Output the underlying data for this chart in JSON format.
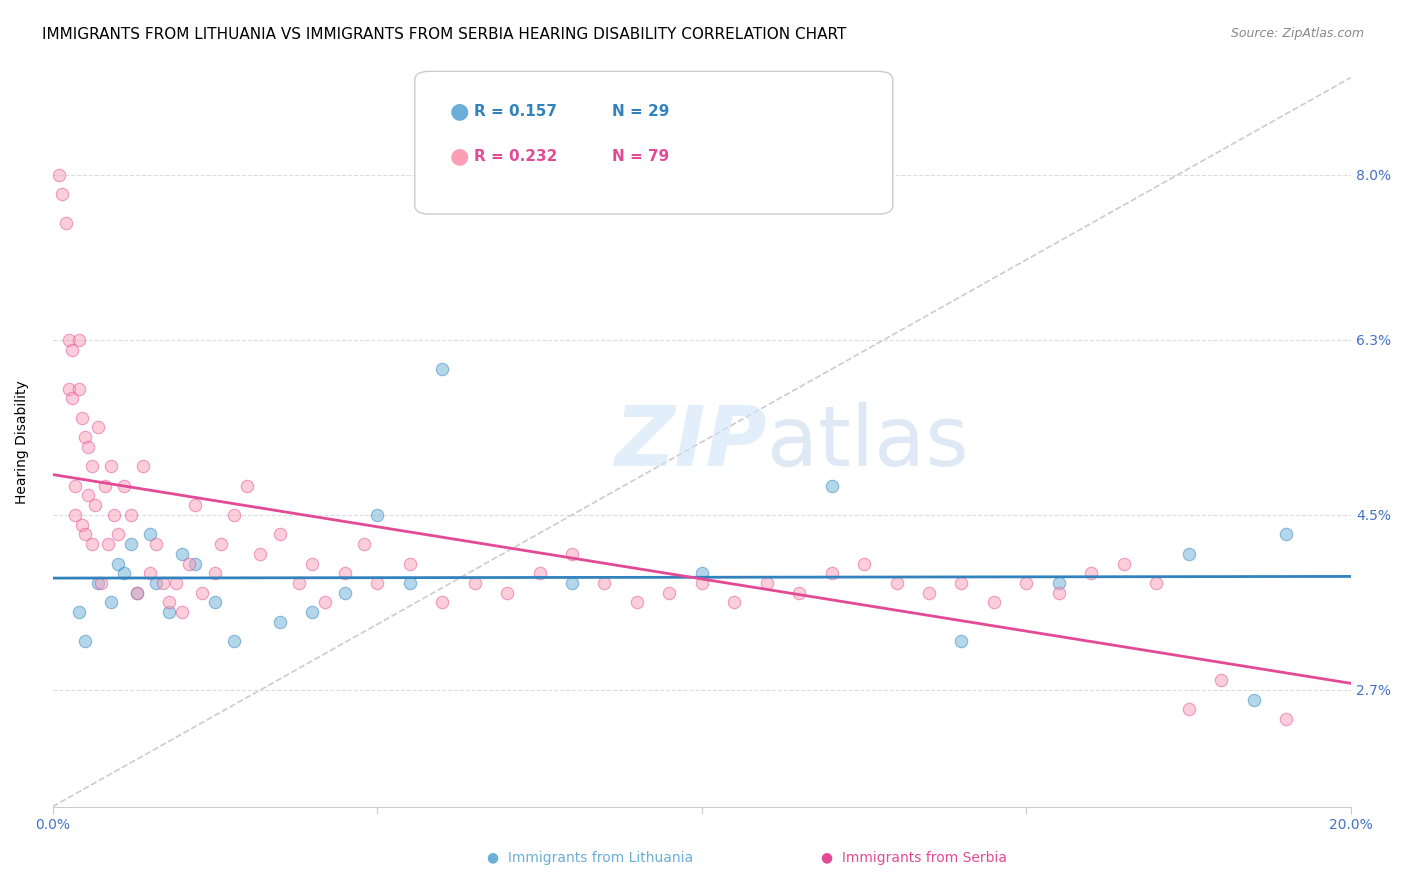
{
  "title": "IMMIGRANTS FROM LITHUANIA VS IMMIGRANTS FROM SERBIA HEARING DISABILITY CORRELATION CHART",
  "source": "Source: ZipAtlas.com",
  "xlabel": "",
  "ylabel": "Hearing Disability",
  "xlim": [
    0.0,
    20.0
  ],
  "ylim": [
    1.5,
    9.0
  ],
  "yticks": [
    2.7,
    4.5,
    6.3,
    8.0
  ],
  "ytick_labels": [
    "2.7%",
    "4.5%",
    "6.3%",
    "8.0%"
  ],
  "xticks": [
    0.0,
    5.0,
    10.0,
    15.0,
    20.0
  ],
  "xtick_labels": [
    "0.0%",
    "",
    "",
    "",
    "20.0%"
  ],
  "legend_blue_r": "R = 0.157",
  "legend_blue_n": "N = 29",
  "legend_pink_r": "R = 0.232",
  "legend_pink_n": "N = 79",
  "legend_label_blue": "Immigrants from Lithuania",
  "legend_label_pink": "Immigrants from Serbia",
  "color_blue": "#6baed6",
  "color_pink": "#fa9fb5",
  "color_blue_line": "#3182bd",
  "color_pink_line": "#e34a96",
  "color_diag_line": "#cccccc",
  "background_color": "#ffffff",
  "grid_color": "#dddddd",
  "axis_color": "#4472c4",
  "title_fontsize": 11,
  "label_fontsize": 10,
  "tick_fontsize": 10,
  "scatter_size": 80,
  "scatter_alpha": 0.5,
  "lithuania_x": [
    0.4,
    0.5,
    0.7,
    0.9,
    1.0,
    1.1,
    1.2,
    1.3,
    1.5,
    1.6,
    1.8,
    2.0,
    2.2,
    2.5,
    2.8,
    3.5,
    4.0,
    4.5,
    5.0,
    5.5,
    6.0,
    8.0,
    10.0,
    12.0,
    14.0,
    15.5,
    17.5,
    18.5,
    19.0
  ],
  "lithuania_y": [
    3.5,
    3.2,
    3.8,
    3.6,
    4.0,
    3.9,
    4.2,
    3.7,
    4.3,
    3.8,
    3.5,
    4.1,
    4.0,
    3.6,
    3.2,
    3.4,
    3.5,
    3.7,
    4.5,
    3.8,
    6.0,
    3.8,
    3.9,
    4.8,
    3.2,
    3.8,
    4.1,
    2.6,
    4.3
  ],
  "serbia_x": [
    0.1,
    0.15,
    0.2,
    0.25,
    0.25,
    0.3,
    0.3,
    0.35,
    0.35,
    0.4,
    0.4,
    0.45,
    0.45,
    0.5,
    0.5,
    0.55,
    0.55,
    0.6,
    0.6,
    0.65,
    0.7,
    0.75,
    0.8,
    0.85,
    0.9,
    0.95,
    1.0,
    1.1,
    1.2,
    1.3,
    1.4,
    1.5,
    1.6,
    1.7,
    1.8,
    1.9,
    2.0,
    2.1,
    2.2,
    2.3,
    2.5,
    2.6,
    2.8,
    3.0,
    3.2,
    3.5,
    3.8,
    4.0,
    4.2,
    4.5,
    4.8,
    5.0,
    5.5,
    6.0,
    6.5,
    7.0,
    7.5,
    8.0,
    8.5,
    9.0,
    9.5,
    10.0,
    10.5,
    11.0,
    11.5,
    12.0,
    12.5,
    13.0,
    13.5,
    14.0,
    14.5,
    15.0,
    15.5,
    16.0,
    16.5,
    17.0,
    17.5,
    18.0,
    19.0
  ],
  "serbia_y": [
    8.0,
    7.8,
    7.5,
    5.8,
    6.3,
    6.2,
    5.7,
    4.5,
    4.8,
    6.3,
    5.8,
    4.4,
    5.5,
    4.3,
    5.3,
    4.7,
    5.2,
    4.2,
    5.0,
    4.6,
    5.4,
    3.8,
    4.8,
    4.2,
    5.0,
    4.5,
    4.3,
    4.8,
    4.5,
    3.7,
    5.0,
    3.9,
    4.2,
    3.8,
    3.6,
    3.8,
    3.5,
    4.0,
    4.6,
    3.7,
    3.9,
    4.2,
    4.5,
    4.8,
    4.1,
    4.3,
    3.8,
    4.0,
    3.6,
    3.9,
    4.2,
    3.8,
    4.0,
    3.6,
    3.8,
    3.7,
    3.9,
    4.1,
    3.8,
    3.6,
    3.7,
    3.8,
    3.6,
    3.8,
    3.7,
    3.9,
    4.0,
    3.8,
    3.7,
    3.8,
    3.6,
    3.8,
    3.7,
    3.9,
    4.0,
    3.8,
    2.5,
    2.8,
    2.4
  ]
}
